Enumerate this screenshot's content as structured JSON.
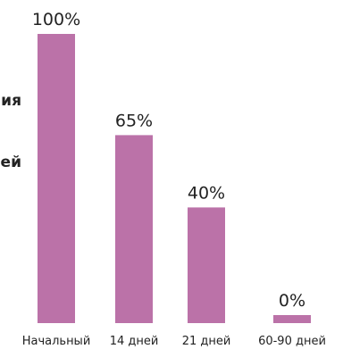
{
  "chart_data": {
    "type": "bar",
    "categories": [
      "Начальный",
      "14 дней",
      "21 дней",
      "60-90 дней"
    ],
    "values": [
      100,
      65,
      40,
      0
    ],
    "value_labels": [
      "100%",
      "65%",
      "40%",
      "0%"
    ],
    "ylim": [
      0,
      100
    ],
    "grid": false,
    "bar_color": "#bb72a8"
  },
  "clipped_text": [
    "ия",
    "ей"
  ]
}
